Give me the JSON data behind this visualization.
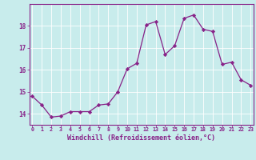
{
  "x": [
    0,
    1,
    2,
    3,
    4,
    5,
    6,
    7,
    8,
    9,
    10,
    11,
    12,
    13,
    14,
    15,
    16,
    17,
    18,
    19,
    20,
    21,
    22,
    23
  ],
  "y": [
    14.8,
    14.4,
    13.85,
    13.9,
    14.1,
    14.1,
    14.1,
    14.4,
    14.45,
    15.0,
    16.05,
    16.3,
    18.05,
    18.2,
    16.7,
    17.1,
    18.35,
    18.5,
    17.85,
    17.75,
    16.25,
    16.35,
    15.55,
    15.3
  ],
  "xlim": [
    0,
    23
  ],
  "ylim": [
    13.5,
    19.0
  ],
  "yticks": [
    14,
    15,
    16,
    17,
    18
  ],
  "xtick_labels": [
    "0",
    "1",
    "2",
    "3",
    "4",
    "5",
    "6",
    "7",
    "8",
    "9",
    "10",
    "11",
    "12",
    "13",
    "14",
    "15",
    "16",
    "17",
    "18",
    "19",
    "20",
    "21",
    "22",
    "23"
  ],
  "xlabel": "Windchill (Refroidissement éolien,°C)",
  "line_color": "#882288",
  "marker_color": "#882288",
  "bg_color": "#c8ecec",
  "grid_color": "#aadddd",
  "tick_color": "#882288",
  "label_color": "#882288",
  "spine_color": "#882288"
}
